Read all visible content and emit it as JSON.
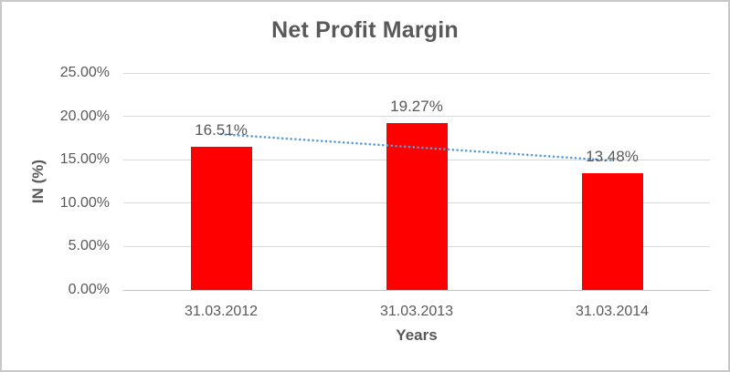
{
  "chart": {
    "background": "#ffffff",
    "border_color": "#c8c8c8",
    "text_color": "#595959",
    "gridline_color": "#d9d9d9"
  },
  "chart_data": {
    "type": "bar",
    "title": "Net Profit Margin",
    "xlabel": "Years",
    "ylabel": "IN (%)",
    "categories": [
      "31.03.2012",
      "31.03.2013",
      "31.03.2014"
    ],
    "values": [
      16.51,
      19.27,
      13.48
    ],
    "data_labels": [
      "16.51%",
      "19.27%",
      "13.48%"
    ],
    "ylim": [
      0,
      25
    ],
    "ytick_step": 5,
    "ytick_labels": [
      "0.00%",
      "5.00%",
      "10.00%",
      "15.00%",
      "20.00%",
      "25.00%"
    ],
    "grid": "horizontal",
    "legend": "none",
    "bar_color": "#ff0000",
    "trendline": {
      "type": "linear",
      "style": "dotted",
      "color": "#5b9bd5",
      "fitted_values": [
        17.94,
        16.42,
        14.91
      ]
    }
  }
}
